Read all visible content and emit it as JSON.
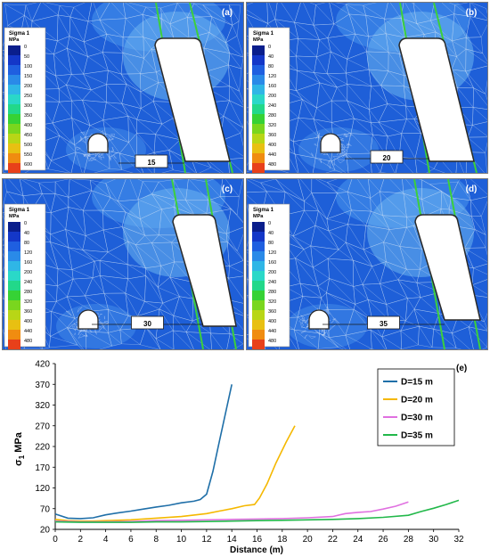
{
  "panels": [
    {
      "tag": "(a)",
      "title": "Sigma 1",
      "unit": "MPa",
      "ticks": [
        "0",
        "50",
        "100",
        "150",
        "200",
        "250",
        "300",
        "350",
        "400",
        "450",
        "500",
        "550",
        "600"
      ],
      "distance": "15"
    },
    {
      "tag": "(b)",
      "title": "Sigma 1",
      "unit": "MPa",
      "ticks": [
        "0",
        "40",
        "80",
        "120",
        "160",
        "200",
        "240",
        "280",
        "320",
        "360",
        "400",
        "440",
        "480"
      ],
      "distance": "20"
    },
    {
      "tag": "(c)",
      "title": "Sigma 1",
      "unit": "MPa",
      "ticks": [
        "0",
        "40",
        "80",
        "120",
        "160",
        "200",
        "240",
        "280",
        "320",
        "360",
        "400",
        "440",
        "480"
      ],
      "distance": "30"
    },
    {
      "tag": "(d)",
      "title": "Sigma 1",
      "unit": "MPa",
      "ticks": [
        "0",
        "40",
        "80",
        "120",
        "160",
        "200",
        "240",
        "280",
        "320",
        "360",
        "400",
        "440",
        "480"
      ],
      "distance": "35"
    }
  ],
  "colors": {
    "mesh_deep": "#1e5fd8",
    "mesh_mid": "#3a82e6",
    "mesh_light": "#6cb4f0",
    "fault_line": "#3ccf3c",
    "legend_scale": [
      "#0a1e8c",
      "#1437c8",
      "#1f5fe0",
      "#2a8ae8",
      "#2fb6e6",
      "#2ad8c8",
      "#22d88a",
      "#36d235",
      "#7ad61e",
      "#b8d616",
      "#e8c012",
      "#f08c10",
      "#e8401a"
    ],
    "series": [
      "#1f6fa8",
      "#f5b800",
      "#e070e0",
      "#22b84a"
    ]
  },
  "chart_data": {
    "type": "line",
    "title": "",
    "xlabel": "Distance (m)",
    "ylabel": "σ1 MPa",
    "panel_tag": "(e)",
    "xlim": [
      0,
      32
    ],
    "ylim": [
      20,
      420
    ],
    "xticks": [
      0,
      2,
      4,
      6,
      8,
      10,
      12,
      14,
      16,
      18,
      20,
      22,
      24,
      26,
      28,
      30,
      32
    ],
    "yticks": [
      20,
      70,
      120,
      170,
      220,
      270,
      320,
      370,
      420
    ],
    "legend_position": "top-right",
    "series": [
      {
        "name": "D=15 m",
        "color": "#1f6fa8",
        "points": [
          [
            0,
            57
          ],
          [
            1,
            47
          ],
          [
            2,
            46
          ],
          [
            3,
            48
          ],
          [
            4,
            55
          ],
          [
            5,
            60
          ],
          [
            6,
            64
          ],
          [
            7,
            69
          ],
          [
            8,
            74
          ],
          [
            9,
            78
          ],
          [
            10,
            84
          ],
          [
            11,
            88
          ],
          [
            11.5,
            92
          ],
          [
            12,
            105
          ],
          [
            12.5,
            160
          ],
          [
            13,
            230
          ],
          [
            13.5,
            300
          ],
          [
            14,
            370
          ]
        ]
      },
      {
        "name": "D=20 m",
        "color": "#f5b800",
        "points": [
          [
            0,
            44
          ],
          [
            1,
            41
          ],
          [
            2,
            40
          ],
          [
            3,
            40
          ],
          [
            4,
            41
          ],
          [
            6,
            43
          ],
          [
            8,
            47
          ],
          [
            10,
            51
          ],
          [
            12,
            58
          ],
          [
            13,
            64
          ],
          [
            14,
            70
          ],
          [
            15,
            77
          ],
          [
            15.8,
            80
          ],
          [
            16.2,
            96
          ],
          [
            16.8,
            130
          ],
          [
            17.5,
            180
          ],
          [
            18.3,
            230
          ],
          [
            19,
            270
          ]
        ]
      },
      {
        "name": "D=30 m",
        "color": "#e070e0",
        "points": [
          [
            0,
            40
          ],
          [
            2,
            38
          ],
          [
            4,
            38
          ],
          [
            6,
            39
          ],
          [
            8,
            41
          ],
          [
            10,
            42
          ],
          [
            12,
            43
          ],
          [
            14,
            44
          ],
          [
            16,
            45
          ],
          [
            18,
            46
          ],
          [
            20,
            48
          ],
          [
            22,
            51
          ],
          [
            23,
            58
          ],
          [
            24,
            61
          ],
          [
            25,
            63
          ],
          [
            26,
            69
          ],
          [
            27,
            76
          ],
          [
            28,
            86
          ]
        ]
      },
      {
        "name": "D=35 m",
        "color": "#22b84a",
        "points": [
          [
            0,
            38
          ],
          [
            2,
            37
          ],
          [
            4,
            37
          ],
          [
            6,
            37
          ],
          [
            8,
            38
          ],
          [
            10,
            38
          ],
          [
            12,
            39
          ],
          [
            14,
            40
          ],
          [
            16,
            41
          ],
          [
            18,
            42
          ],
          [
            20,
            43
          ],
          [
            22,
            44
          ],
          [
            24,
            46
          ],
          [
            26,
            49
          ],
          [
            28,
            54
          ],
          [
            29,
            63
          ],
          [
            30,
            71
          ],
          [
            31,
            80
          ],
          [
            32,
            90
          ]
        ]
      }
    ]
  }
}
